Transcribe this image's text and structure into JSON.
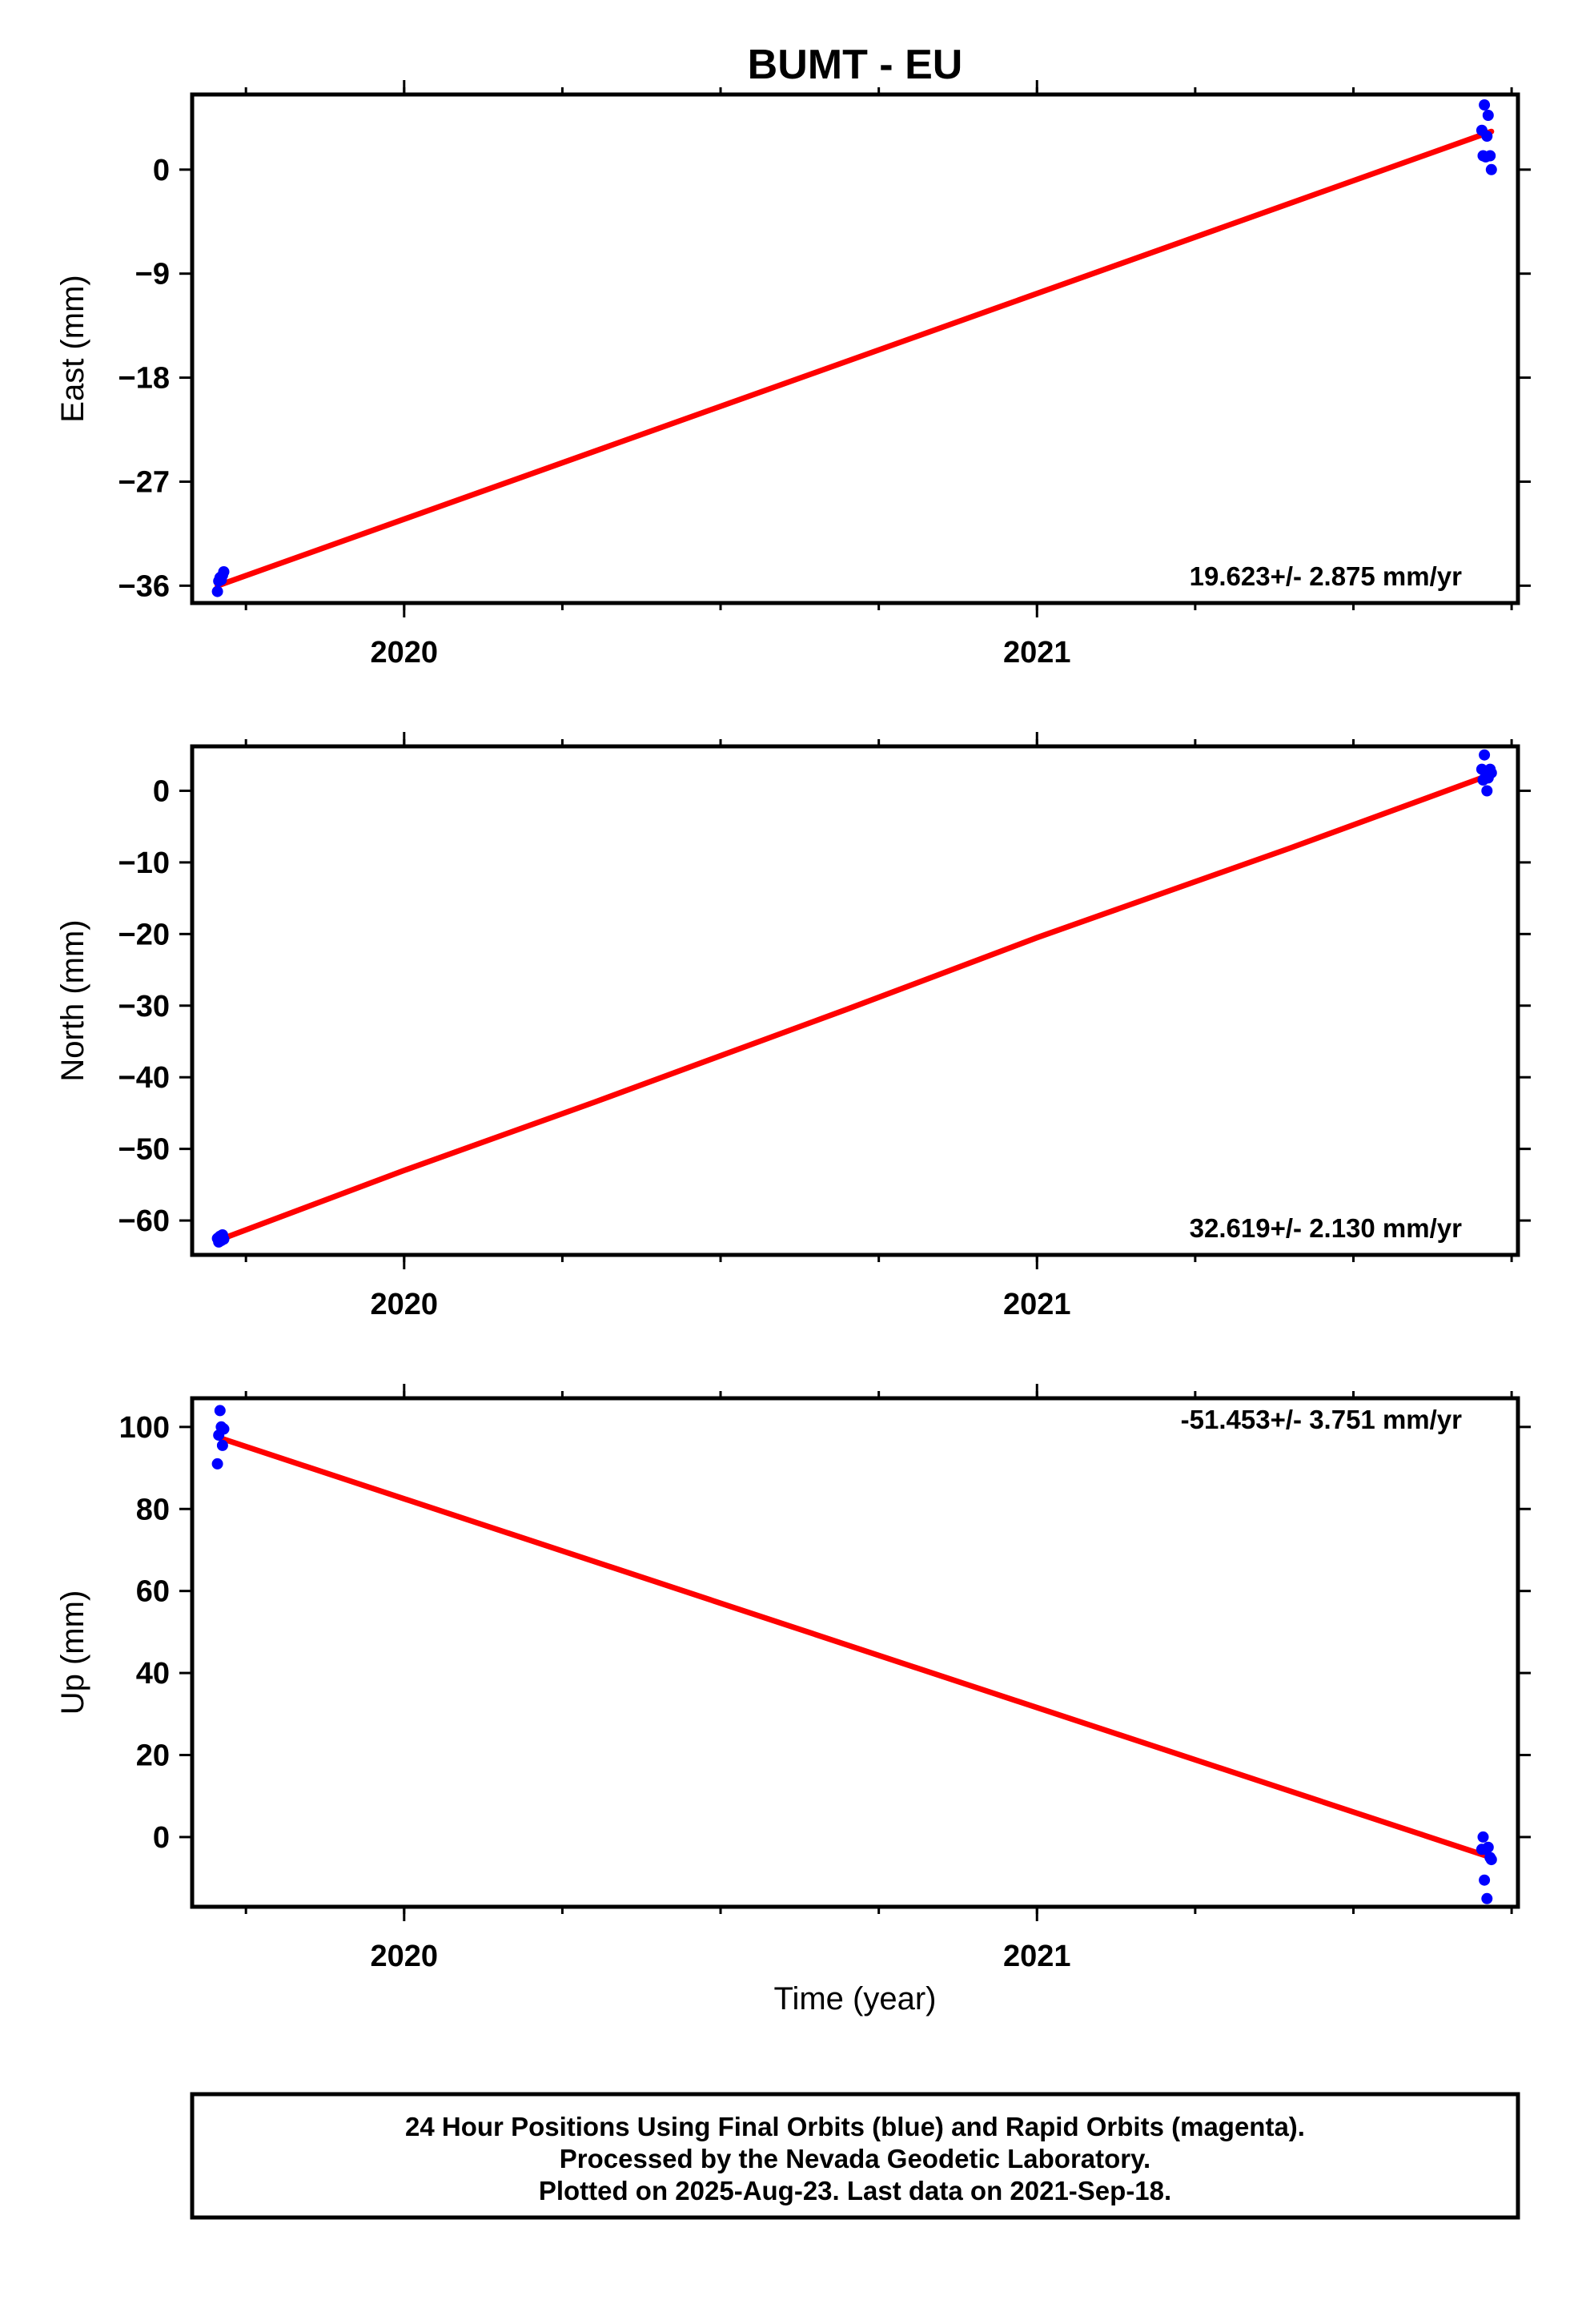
{
  "title": "BUMT - EU",
  "colors": {
    "final_orbits": "#0000ff",
    "rapid_orbits": "#ff00ff",
    "trend": "#ff0000",
    "frame": "#000000"
  },
  "footer": {
    "lines": [
      "24 Hour Positions Using Final Orbits (blue) and Rapid Orbits (magenta).",
      "Processed by the Nevada Geodetic Laboratory.",
      "Plotted on 2025-Aug-23. Last data on 2021-Sep-18."
    ]
  },
  "chart_data": [
    {
      "type": "scatter",
      "ylabel": "East (mm)",
      "xlabel": "",
      "xlim": [
        2019.665,
        2021.76
      ],
      "ylim": [
        -37.5,
        6.5
      ],
      "yticks": [
        "0",
        "−9",
        "−18",
        "−27",
        "−36"
      ],
      "ytick_values": [
        0,
        -9,
        -18,
        -27,
        -36
      ],
      "xticks": [
        "2020",
        "2021"
      ],
      "xtick_values": [
        2020,
        2021
      ],
      "rate_label": "19.623+/- 2.875 mm/yr",
      "series": [
        {
          "x": [
            2019.705,
            2019.707,
            2019.709,
            2019.711,
            2019.713,
            2019.715,
            2021.703,
            2021.705,
            2021.707,
            2021.709,
            2021.711,
            2021.713,
            2021.716,
            2021.718
          ],
          "y": [
            -36.5,
            -35.6,
            -35.3,
            -35.5,
            -35.1,
            -34.8,
            3.4,
            1.2,
            5.6,
            1.1,
            2.9,
            4.7,
            1.2,
            0.0
          ]
        }
      ],
      "trend": {
        "x": [
          2019.705,
          2021.718
        ],
        "y": [
          -36.0,
          3.3
        ]
      }
    },
    {
      "type": "scatter",
      "ylabel": "North (mm)",
      "xlabel": "",
      "xlim": [
        2019.665,
        2021.76
      ],
      "ylim": [
        -64.8,
        6.2
      ],
      "yticks": [
        "0",
        "−10",
        "−20",
        "−30",
        "−40",
        "−50",
        "−60"
      ],
      "ytick_values": [
        0,
        -10,
        -20,
        -30,
        -40,
        -50,
        -60
      ],
      "xticks": [
        "2020",
        "2021"
      ],
      "xtick_values": [
        2020,
        2021
      ],
      "rate_label": "32.619+/- 2.130 mm/yr",
      "series": [
        {
          "x": [
            2019.705,
            2019.707,
            2019.709,
            2019.711,
            2019.713,
            2019.715,
            2021.703,
            2021.705,
            2021.707,
            2021.709,
            2021.711,
            2021.713,
            2021.716,
            2021.718
          ],
          "y": [
            -62.5,
            -63.0,
            -62.2,
            -62.8,
            -62.0,
            -62.6,
            3.0,
            1.5,
            5.0,
            2.0,
            0.0,
            1.8,
            3.0,
            2.5
          ]
        }
      ],
      "trend": {
        "x": [
          2019.705,
          2020.0,
          2020.3,
          2020.7,
          2021.0,
          2021.4,
          2021.718
        ],
        "y": [
          -62.8,
          -53.0,
          -43.5,
          -30.5,
          -20.5,
          -8.0,
          2.3
        ]
      }
    },
    {
      "type": "scatter",
      "ylabel": "Up (mm)",
      "xlabel": "Time (year)",
      "xlim": [
        2019.665,
        2021.76
      ],
      "ylim": [
        -17.0,
        107.0
      ],
      "yticks": [
        "100",
        "80",
        "60",
        "40",
        "20",
        "0"
      ],
      "ytick_values": [
        100,
        80,
        60,
        40,
        20,
        0
      ],
      "xticks": [
        "2020",
        "2021"
      ],
      "xtick_values": [
        2020,
        2021
      ],
      "rate_label": "-51.453+/- 3.751 mm/yr",
      "series": [
        {
          "x": [
            2019.705,
            2019.707,
            2019.709,
            2019.711,
            2019.713,
            2019.715,
            2021.703,
            2021.705,
            2021.707,
            2021.709,
            2021.711,
            2021.713,
            2021.716,
            2021.718
          ],
          "y": [
            91.0,
            98.0,
            104.0,
            100.0,
            95.5,
            99.5,
            -3.0,
            0.0,
            -10.5,
            -3.0,
            -15.0,
            -2.5,
            -5.0,
            -5.5
          ]
        }
      ],
      "trend": {
        "x": [
          2019.705,
          2021.718
        ],
        "y": [
          97.5,
          -5.0
        ]
      }
    }
  ]
}
